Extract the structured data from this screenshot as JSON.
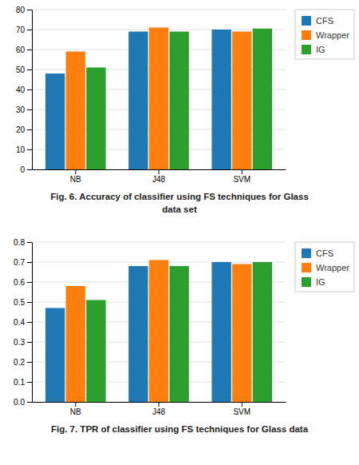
{
  "chart_data": [
    {
      "type": "bar",
      "title": "Fig. 6. Accuracy of classifier using FS techniques for Glass",
      "subtitle": "data set",
      "categories": [
        "NB",
        "J48",
        "SVM"
      ],
      "series": [
        {
          "name": "CFS",
          "values": [
            48,
            69,
            70
          ]
        },
        {
          "name": "Wrapper",
          "values": [
            59,
            71,
            69
          ]
        },
        {
          "name": "IG",
          "values": [
            51,
            69,
            70.5
          ]
        }
      ],
      "ylim": [
        0,
        80
      ],
      "yticks": [
        0,
        10,
        20,
        30,
        40,
        50,
        60,
        70,
        80
      ],
      "grid": true,
      "legend": "right"
    },
    {
      "type": "bar",
      "title": "Fig. 7. TPR of classifier using FS techniques for Glass data",
      "categories": [
        "NB",
        "J48",
        "SVM"
      ],
      "series": [
        {
          "name": "CFS",
          "values": [
            0.47,
            0.68,
            0.7
          ]
        },
        {
          "name": "Wrapper",
          "values": [
            0.58,
            0.71,
            0.69
          ]
        },
        {
          "name": "IG",
          "values": [
            0.51,
            0.68,
            0.7
          ]
        }
      ],
      "ylim": [
        0,
        0.8
      ],
      "yticks": [
        {
          "value": 0,
          "label": "0.0"
        },
        0.1,
        0.2,
        0.3,
        0.4,
        0.5,
        0.6,
        0.7,
        0.8
      ],
      "grid": true,
      "legend": "right"
    }
  ]
}
